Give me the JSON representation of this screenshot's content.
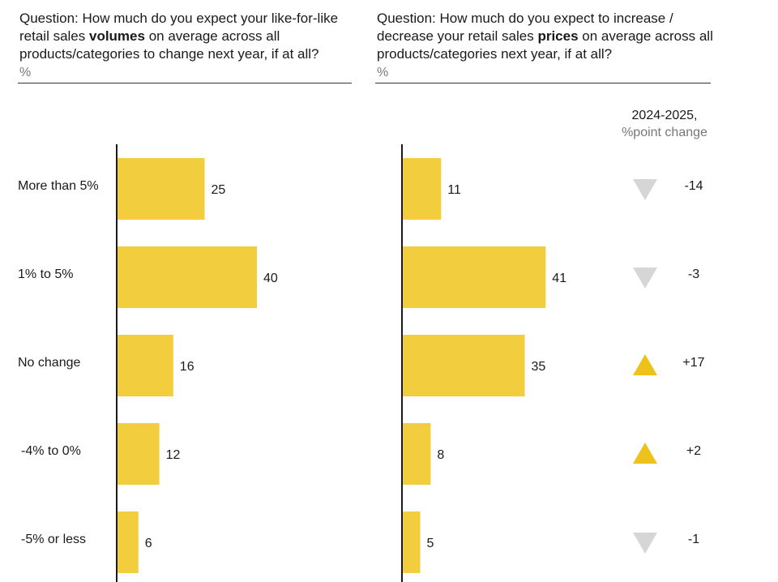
{
  "left_question": {
    "prefix": "Question: How much do you expect your like-for-like retail sales ",
    "bold": "volumes",
    "suffix": " on average across all products/categories to change next year, if at all?",
    "unit": "%"
  },
  "right_question": {
    "prefix": "Question: How much do you expect to increase / decrease your retail sales ",
    "bold": "prices",
    "suffix": " on average across all products/categories next year, if at all?",
    "unit": "%"
  },
  "change_header": {
    "line1": "2024-2025,",
    "line2": "%point change"
  },
  "colors": {
    "bar": "#F2CD3E",
    "up": "#EDC21A",
    "down": "#D6D6D6",
    "axis": "#1a1a1a"
  },
  "chart_data": [
    {
      "type": "bar",
      "orientation": "horizontal",
      "title": "Like-for-like retail sales volumes change next year",
      "categories": [
        "More than 5%",
        "1% to 5%",
        "No change",
        "-4% to 0%",
        "-5% or less"
      ],
      "values": [
        25,
        40,
        16,
        12,
        6
      ],
      "unit": "%"
    },
    {
      "type": "bar",
      "orientation": "horizontal",
      "title": "Retail sales prices change next year",
      "categories": [
        "More than 5%",
        "1% to 5%",
        "No change",
        "-4% to 0%",
        "-5% or less"
      ],
      "values": [
        11,
        41,
        35,
        8,
        5
      ],
      "unit": "%",
      "change_2024_2025": [
        {
          "direction": "down",
          "label": "-14"
        },
        {
          "direction": "down",
          "label": "-3"
        },
        {
          "direction": "up",
          "label": "+17"
        },
        {
          "direction": "up",
          "label": "+2"
        },
        {
          "direction": "down",
          "label": "-1"
        }
      ]
    }
  ]
}
